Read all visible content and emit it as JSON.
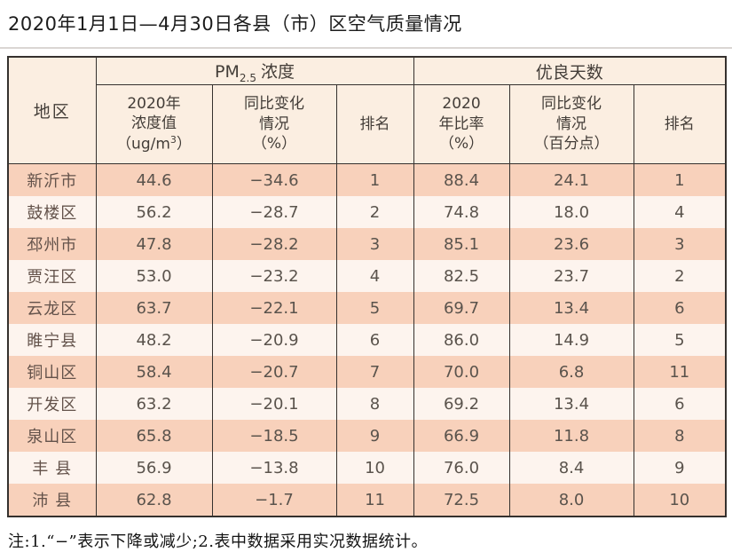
{
  "page": {
    "title": "2020年1月1日—4月30日各县（市）区空气质量情况",
    "note": "注:1.“−”表示下降或减少;2.表中数据采用实况数据统计。"
  },
  "colors": {
    "border": "#35312e",
    "header_bg": "#fbeee1",
    "row_odd_bg": "#f8d1bb",
    "row_even_bg": "#fdf4ee",
    "cell_text": "#5a534c",
    "title_text": "#1c1c1c"
  },
  "table": {
    "header": {
      "region": "地区",
      "pm_group": {
        "prefix": "PM",
        "sub": "2.5",
        "suffix": "浓度"
      },
      "good_group": "优良天数",
      "pm_value": {
        "line1": "2020年",
        "line2": "浓度值",
        "line3_pre": "（ug/m",
        "line3_sup": "3",
        "line3_post": "）"
      },
      "pm_change": {
        "line1": "同比变化",
        "line2": "情况",
        "line3": "（%）"
      },
      "pm_rank": "排名",
      "good_rate": {
        "line1": "2020",
        "line2": "年比率",
        "line3": "（%）"
      },
      "good_change": {
        "line1": "同比变化",
        "line2": "情况",
        "line3": "（百分点）"
      },
      "good_rank": "排名"
    },
    "rows": [
      {
        "region": "新沂市",
        "pm_value": "44.6",
        "pm_change": "−34.6",
        "pm_rank": "1",
        "good_rate": "88.4",
        "good_change": "24.1",
        "good_rank": "1"
      },
      {
        "region": "鼓楼区",
        "pm_value": "56.2",
        "pm_change": "−28.7",
        "pm_rank": "2",
        "good_rate": "74.8",
        "good_change": "18.0",
        "good_rank": "4"
      },
      {
        "region": "邳州市",
        "pm_value": "47.8",
        "pm_change": "−28.2",
        "pm_rank": "3",
        "good_rate": "85.1",
        "good_change": "23.6",
        "good_rank": "3"
      },
      {
        "region": "贾汪区",
        "pm_value": "53.0",
        "pm_change": "−23.2",
        "pm_rank": "4",
        "good_rate": "82.5",
        "good_change": "23.7",
        "good_rank": "2"
      },
      {
        "region": "云龙区",
        "pm_value": "63.7",
        "pm_change": "−22.1",
        "pm_rank": "5",
        "good_rate": "69.7",
        "good_change": "13.4",
        "good_rank": "6"
      },
      {
        "region": "睢宁县",
        "pm_value": "48.2",
        "pm_change": "−20.9",
        "pm_rank": "6",
        "good_rate": "86.0",
        "good_change": "14.9",
        "good_rank": "5"
      },
      {
        "region": "铜山区",
        "pm_value": "58.4",
        "pm_change": "−20.7",
        "pm_rank": "7",
        "good_rate": "70.0",
        "good_change": "6.8",
        "good_rank": "11"
      },
      {
        "region": "开发区",
        "pm_value": "63.2",
        "pm_change": "−20.1",
        "pm_rank": "8",
        "good_rate": "69.2",
        "good_change": "13.4",
        "good_rank": "6"
      },
      {
        "region": "泉山区",
        "pm_value": "65.8",
        "pm_change": "−18.5",
        "pm_rank": "9",
        "good_rate": "66.9",
        "good_change": "11.8",
        "good_rank": "8"
      },
      {
        "region": "丰 县",
        "pm_value": "56.9",
        "pm_change": "−13.8",
        "pm_rank": "10",
        "good_rate": "76.0",
        "good_change": "8.4",
        "good_rank": "9"
      },
      {
        "region": "沛 县",
        "pm_value": "62.8",
        "pm_change": "−1.7",
        "pm_rank": "11",
        "good_rate": "72.5",
        "good_change": "8.0",
        "good_rank": "10"
      }
    ]
  }
}
